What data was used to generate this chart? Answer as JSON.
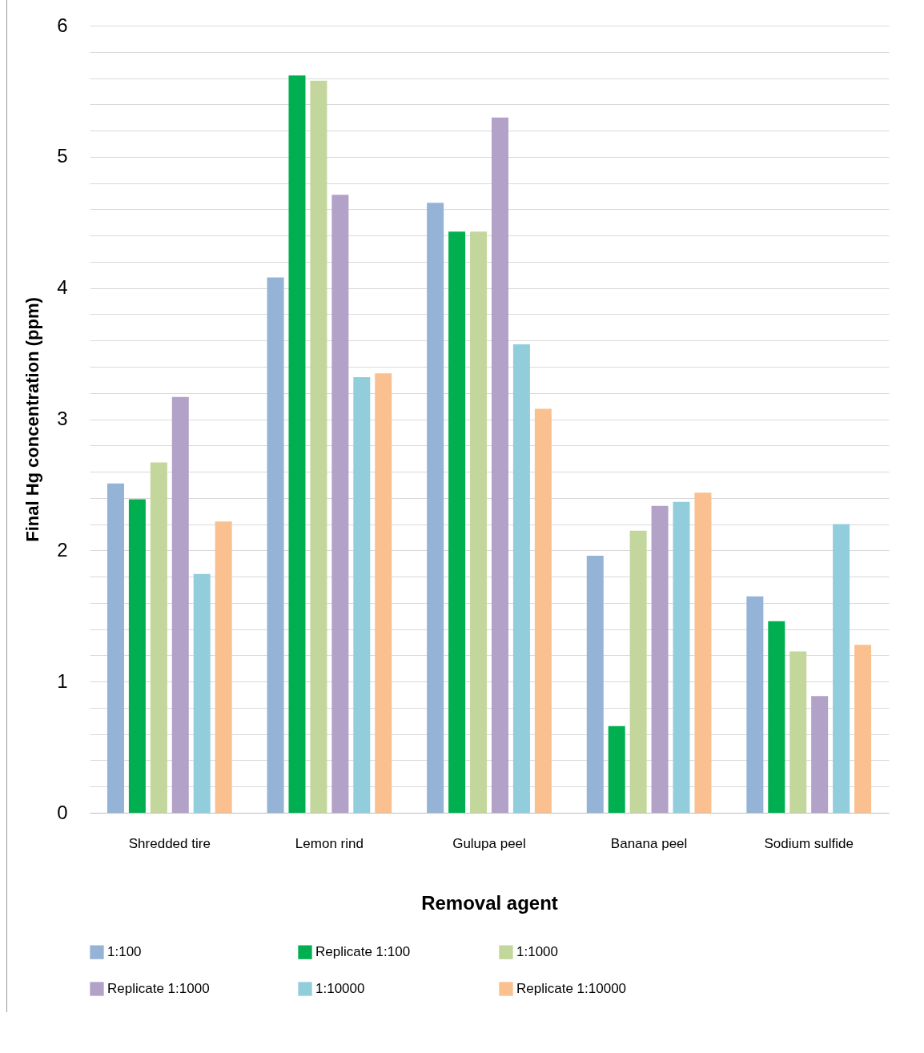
{
  "chart_data": {
    "type": "bar",
    "xlabel": "Removal agent",
    "ylabel": "Final Hg concentration (ppm)",
    "categories": [
      "Shredded tire",
      "Lemon rind",
      "Gulupa peel",
      "Banana peel",
      "Sodium sulfide"
    ],
    "series": [
      {
        "name": "1:100",
        "color": "#95b3d7",
        "values": [
          2.51,
          4.08,
          4.65,
          1.96,
          1.65
        ]
      },
      {
        "name": "Replicate 1:100",
        "color": "#00b050",
        "values": [
          2.39,
          5.62,
          4.43,
          0.66,
          1.46
        ]
      },
      {
        "name": "1:1000",
        "color": "#c3d69b",
        "values": [
          2.67,
          5.58,
          4.43,
          2.15,
          1.23
        ]
      },
      {
        "name": "Replicate 1:1000",
        "color": "#b2a2c7",
        "values": [
          3.17,
          4.71,
          5.3,
          2.34,
          0.89
        ]
      },
      {
        "name": "1:10000",
        "color": "#92cddc",
        "values": [
          1.82,
          3.32,
          3.57,
          2.37,
          2.2
        ]
      },
      {
        "name": "Replicate 1:10000",
        "color": "#fac090",
        "values": [
          2.22,
          3.35,
          3.08,
          2.44,
          1.28
        ]
      }
    ],
    "ylim": [
      0,
      6
    ],
    "yticks": [
      0,
      {
        "value": 0.2,
        "label": null
      },
      {
        "value": 0.4,
        "label": null
      },
      {
        "value": 0.6,
        "label": null
      },
      {
        "value": 0.8,
        "label": null
      },
      1,
      {
        "value": 1.2,
        "label": null
      },
      {
        "value": 1.4,
        "label": null
      },
      {
        "value": 1.6,
        "label": null
      },
      {
        "value": 1.8,
        "label": null
      },
      2,
      {
        "value": 2.2,
        "label": null
      },
      {
        "value": 2.4,
        "label": null
      },
      {
        "value": 2.6,
        "label": null
      },
      {
        "value": 2.8,
        "label": null
      },
      3,
      {
        "value": 3.2,
        "label": null
      },
      {
        "value": 3.4,
        "label": null
      },
      {
        "value": 3.6,
        "label": null
      },
      {
        "value": 3.8,
        "label": null
      },
      4,
      {
        "value": 4.2,
        "label": null
      },
      {
        "value": 4.4,
        "label": null
      },
      {
        "value": 4.6,
        "label": null
      },
      {
        "value": 4.8,
        "label": null
      },
      5,
      {
        "value": 5.2,
        "label": null
      },
      {
        "value": 5.4,
        "label": null
      },
      {
        "value": 5.6,
        "label": null
      },
      {
        "value": 5.8,
        "label": null
      },
      6
    ],
    "grid": true,
    "legend": "bottom"
  }
}
